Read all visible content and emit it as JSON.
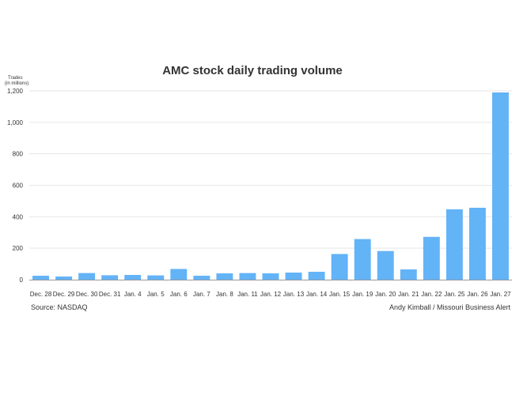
{
  "chart_data": {
    "type": "bar",
    "title": "AMC stock daily trading volume",
    "ylabel_line1": "Trades",
    "ylabel_line2": "(in millions)",
    "xlabel": "",
    "ylim": [
      0,
      1200
    ],
    "yticks": [
      0,
      200,
      400,
      600,
      800,
      1000,
      1200
    ],
    "ytick_labels": [
      "0",
      "200",
      "400",
      "600",
      "800",
      "1,000",
      "1,200"
    ],
    "grid": true,
    "legend": "none",
    "bar_color": "#63b3f7",
    "categories": [
      "Dec. 28",
      "Dec. 29",
      "Dec. 30",
      "Dec. 31",
      "Jan. 4",
      "Jan. 5",
      "Jan. 6",
      "Jan. 7",
      "Jan. 8",
      "Jan. 11",
      "Jan. 12",
      "Jan. 13",
      "Jan. 14",
      "Jan. 15",
      "Jan. 19",
      "Jan. 20",
      "Jan. 21",
      "Jan. 22",
      "Jan. 25",
      "Jan. 26",
      "Jan. 27"
    ],
    "values": [
      25,
      20,
      42,
      28,
      30,
      27,
      68,
      25,
      40,
      42,
      40,
      45,
      50,
      163,
      258,
      182,
      65,
      272,
      447,
      457,
      1190
    ]
  },
  "footer": {
    "source": "Source: NASDAQ",
    "credit": "Andy Kimball / Missouri Business Alert"
  }
}
